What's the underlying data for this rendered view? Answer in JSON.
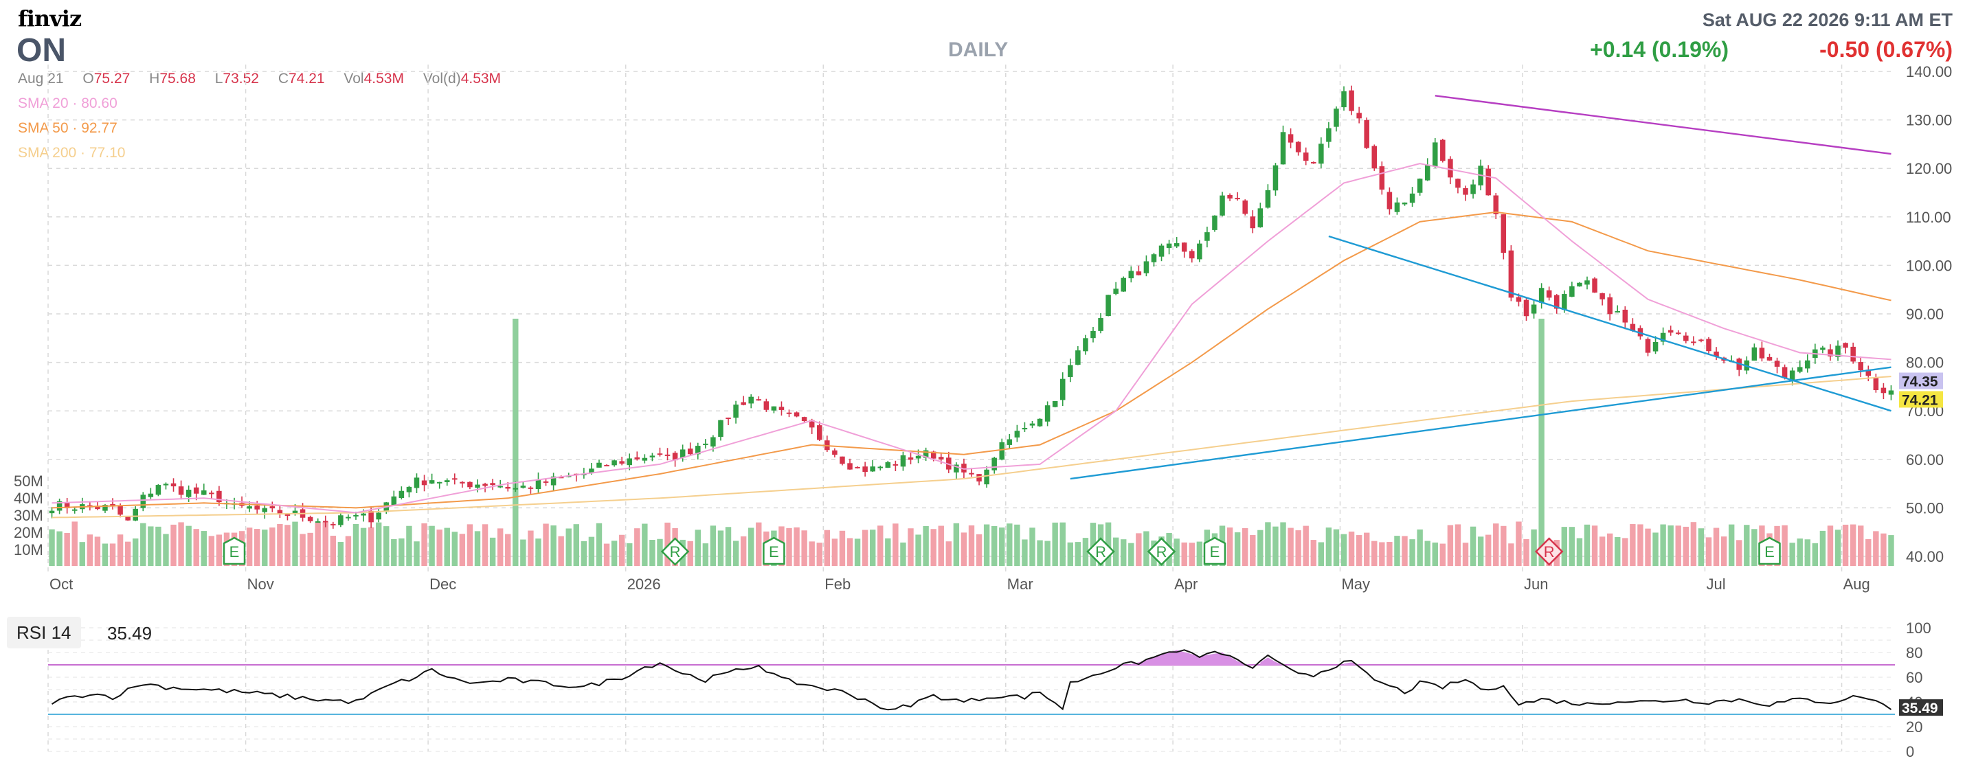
{
  "header": {
    "logo": "finviz",
    "ticker": "ON",
    "timeframe": "DAILY",
    "datetime": "Sat AUG 22 2026 9:11 AM ET",
    "change_pos": "+0.14 (0.19%)",
    "change_neg": "-0.50 (0.67%)"
  },
  "ohlc": {
    "date": "Aug 21",
    "o_label": "O",
    "o": "75.27",
    "h_label": "H",
    "h": "75.68",
    "l_label": "L",
    "l": "73.52",
    "c_label": "C",
    "c": "74.21",
    "vol_label": "Vol",
    "vol": "4.53M",
    "vold_label": "Vol(d)",
    "vold": "4.53M"
  },
  "sma": {
    "sma20": "SMA 20 · 80.60",
    "sma50": "SMA 50 · 92.77",
    "sma200": "SMA 200 · 77.10"
  },
  "rsi": {
    "label": "RSI 14",
    "value": "35.49"
  },
  "colors": {
    "up": "#2f9e44",
    "down": "#d6334b",
    "up_vol": "#8fcf9c",
    "down_vol": "#f2a1a9",
    "sma20": "#f0a0d8",
    "sma50": "#f39a4a",
    "sma200": "#f5cf8e",
    "trend_blue": "#1f9bd4",
    "trend_purple": "#b63ec2",
    "rsi_fill": "#d890e4"
  },
  "chart_data": {
    "type": "candlestick",
    "y_ticks": [
      "140.00",
      "130.00",
      "120.00",
      "110.00",
      "100.00",
      "90.00",
      "80.00",
      "70.00",
      "60.00",
      "50.00",
      "40.00"
    ],
    "y_range": [
      40,
      140
    ],
    "x_labels": [
      "Oct",
      "Nov",
      "Dec",
      "2026",
      "Feb",
      "Mar",
      "Apr",
      "May",
      "Jun",
      "Jul",
      "Aug"
    ],
    "price_tags": [
      {
        "label": "74.35",
        "value": 74.35,
        "color": "#c9c3f0"
      },
      {
        "label": "74.21",
        "value": 74.21,
        "color": "#f5e642"
      }
    ],
    "close_anchors": [
      [
        0,
        50.5
      ],
      [
        8,
        50
      ],
      [
        10,
        47
      ],
      [
        12,
        52
      ],
      [
        14,
        55
      ],
      [
        16,
        54
      ],
      [
        19,
        53
      ],
      [
        22,
        52
      ],
      [
        24,
        50
      ],
      [
        26,
        50
      ],
      [
        28,
        49
      ],
      [
        31,
        49
      ],
      [
        34,
        48
      ],
      [
        37,
        47
      ],
      [
        39,
        48
      ],
      [
        42,
        48
      ],
      [
        44,
        51
      ],
      [
        47,
        55
      ],
      [
        50,
        56
      ],
      [
        53,
        55
      ],
      [
        56,
        55
      ],
      [
        58,
        55
      ],
      [
        61,
        54
      ],
      [
        64,
        55
      ],
      [
        67,
        56
      ],
      [
        70,
        57
      ],
      [
        73,
        59
      ],
      [
        76,
        60
      ],
      [
        79,
        61
      ],
      [
        81,
        60
      ],
      [
        84,
        62
      ],
      [
        86,
        64
      ],
      [
        88,
        67
      ],
      [
        90,
        71
      ],
      [
        92,
        73
      ],
      [
        95,
        70
      ],
      [
        98,
        68
      ],
      [
        100,
        66
      ],
      [
        102,
        63
      ],
      [
        104,
        60
      ],
      [
        106,
        58
      ],
      [
        108,
        58
      ],
      [
        110,
        59
      ],
      [
        112,
        60
      ],
      [
        114,
        61
      ],
      [
        116,
        61
      ],
      [
        118,
        59
      ],
      [
        121,
        56
      ],
      [
        123,
        57
      ],
      [
        124,
        61
      ],
      [
        126,
        64
      ],
      [
        128,
        67
      ],
      [
        130,
        69
      ],
      [
        132,
        73
      ],
      [
        134,
        79
      ],
      [
        136,
        85
      ],
      [
        138,
        90
      ],
      [
        140,
        96
      ],
      [
        142,
        98
      ],
      [
        144,
        100
      ],
      [
        146,
        103
      ],
      [
        148,
        104
      ],
      [
        150,
        102
      ],
      [
        152,
        106
      ],
      [
        154,
        115
      ],
      [
        156,
        113
      ],
      [
        158,
        108
      ],
      [
        160,
        115
      ],
      [
        162,
        127
      ],
      [
        164,
        124
      ],
      [
        166,
        120
      ],
      [
        168,
        128
      ],
      [
        170,
        135
      ],
      [
        172,
        130
      ],
      [
        174,
        120
      ],
      [
        176,
        111
      ],
      [
        178,
        113
      ],
      [
        180,
        118
      ],
      [
        182,
        125
      ],
      [
        184,
        118
      ],
      [
        186,
        114
      ],
      [
        188,
        120
      ],
      [
        190,
        111
      ],
      [
        192,
        94
      ],
      [
        194,
        90
      ],
      [
        196,
        95
      ],
      [
        198,
        92
      ],
      [
        200,
        95
      ],
      [
        202,
        96
      ],
      [
        204,
        92
      ],
      [
        206,
        90
      ],
      [
        208,
        86
      ],
      [
        210,
        83
      ],
      [
        212,
        87
      ],
      [
        214,
        87
      ],
      [
        216,
        84
      ],
      [
        218,
        83
      ],
      [
        220,
        81
      ],
      [
        222,
        79
      ],
      [
        224,
        82
      ],
      [
        226,
        80
      ],
      [
        228,
        77
      ],
      [
        230,
        80
      ],
      [
        232,
        82
      ],
      [
        234,
        82
      ],
      [
        236,
        83
      ],
      [
        238,
        79
      ],
      [
        240,
        75
      ],
      [
        242,
        74.21
      ]
    ],
    "sma20_anchors": [
      [
        0,
        51
      ],
      [
        20,
        52
      ],
      [
        40,
        49
      ],
      [
        60,
        55
      ],
      [
        80,
        59
      ],
      [
        100,
        68
      ],
      [
        120,
        58
      ],
      [
        130,
        59
      ],
      [
        140,
        70
      ],
      [
        150,
        92
      ],
      [
        160,
        105
      ],
      [
        170,
        117
      ],
      [
        180,
        121
      ],
      [
        190,
        118
      ],
      [
        200,
        105
      ],
      [
        210,
        93
      ],
      [
        220,
        87
      ],
      [
        230,
        82
      ],
      [
        242,
        80.6
      ]
    ],
    "sma50_anchors": [
      [
        0,
        50
      ],
      [
        20,
        51
      ],
      [
        40,
        50
      ],
      [
        60,
        52
      ],
      [
        80,
        57
      ],
      [
        100,
        63
      ],
      [
        120,
        61
      ],
      [
        130,
        63
      ],
      [
        140,
        70
      ],
      [
        150,
        80
      ],
      [
        160,
        91
      ],
      [
        170,
        101
      ],
      [
        180,
        109
      ],
      [
        190,
        111
      ],
      [
        200,
        109
      ],
      [
        210,
        103
      ],
      [
        220,
        100
      ],
      [
        230,
        97
      ],
      [
        242,
        92.77
      ]
    ],
    "sma200_anchors": [
      [
        0,
        48
      ],
      [
        40,
        49
      ],
      [
        80,
        52
      ],
      [
        120,
        56
      ],
      [
        160,
        64
      ],
      [
        200,
        72
      ],
      [
        242,
        77.1
      ]
    ],
    "trendlines": [
      {
        "color": "#1f9bd4",
        "from": [
          134,
          56
        ],
        "to": [
          242,
          79
        ]
      },
      {
        "color": "#1f9bd4",
        "from": [
          168,
          106
        ],
        "to": [
          242,
          70
        ]
      },
      {
        "color": "#b63ec2",
        "from": [
          182,
          135
        ],
        "to": [
          242,
          123
        ]
      }
    ],
    "volume_axis": [
      "50M",
      "40M",
      "30M",
      "20M",
      "10M"
    ],
    "volume_spikes": [
      {
        "bar": 61,
        "value": 20,
        "dir": "up"
      },
      {
        "bar": 196,
        "value": 20,
        "dir": "down"
      }
    ],
    "event_markers": [
      {
        "type": "E",
        "bar": 24,
        "dir": "up"
      },
      {
        "type": "R",
        "bar": 82,
        "dir": "up"
      },
      {
        "type": "E",
        "bar": 95,
        "dir": "up"
      },
      {
        "type": "R",
        "bar": 138,
        "dir": "up"
      },
      {
        "type": "R",
        "bar": 146,
        "dir": "up"
      },
      {
        "type": "E",
        "bar": 153,
        "dir": "up"
      },
      {
        "type": "R",
        "bar": 197,
        "dir": "down"
      },
      {
        "type": "E",
        "bar": 226,
        "dir": "up"
      }
    ],
    "rsi_ticks": [
      "100",
      "80",
      "60",
      "40",
      "20",
      "0"
    ],
    "rsi_overbought": 70,
    "rsi_oversold": 30,
    "rsi_anchors": [
      [
        0,
        40
      ],
      [
        5,
        47
      ],
      [
        8,
        44
      ],
      [
        12,
        55
      ],
      [
        15,
        52
      ],
      [
        20,
        50
      ],
      [
        25,
        48
      ],
      [
        30,
        45
      ],
      [
        35,
        42
      ],
      [
        40,
        40
      ],
      [
        45,
        55
      ],
      [
        48,
        60
      ],
      [
        50,
        66
      ],
      [
        53,
        58
      ],
      [
        56,
        55
      ],
      [
        60,
        58
      ],
      [
        65,
        55
      ],
      [
        70,
        52
      ],
      [
        75,
        60
      ],
      [
        78,
        68
      ],
      [
        80,
        72
      ],
      [
        83,
        63
      ],
      [
        86,
        58
      ],
      [
        90,
        65
      ],
      [
        93,
        70
      ],
      [
        96,
        58
      ],
      [
        100,
        53
      ],
      [
        104,
        48
      ],
      [
        108,
        40
      ],
      [
        110,
        32
      ],
      [
        113,
        38
      ],
      [
        116,
        45
      ],
      [
        120,
        40
      ],
      [
        124,
        45
      ],
      [
        128,
        44
      ],
      [
        130,
        48
      ],
      [
        133,
        35
      ],
      [
        134,
        55
      ],
      [
        137,
        62
      ],
      [
        140,
        68
      ],
      [
        143,
        72
      ],
      [
        146,
        78
      ],
      [
        148,
        82
      ],
      [
        151,
        77
      ],
      [
        154,
        80
      ],
      [
        156,
        73
      ],
      [
        158,
        68
      ],
      [
        160,
        76
      ],
      [
        163,
        65
      ],
      [
        166,
        62
      ],
      [
        169,
        70
      ],
      [
        171,
        72
      ],
      [
        173,
        62
      ],
      [
        175,
        55
      ],
      [
        178,
        48
      ],
      [
        180,
        55
      ],
      [
        183,
        52
      ],
      [
        186,
        58
      ],
      [
        189,
        48
      ],
      [
        191,
        55
      ],
      [
        193,
        38
      ],
      [
        196,
        42
      ],
      [
        199,
        40
      ],
      [
        202,
        38
      ],
      [
        206,
        41
      ],
      [
        210,
        40
      ],
      [
        214,
        42
      ],
      [
        218,
        40
      ],
      [
        222,
        42
      ],
      [
        226,
        38
      ],
      [
        230,
        42
      ],
      [
        234,
        40
      ],
      [
        238,
        45
      ],
      [
        242,
        35.49
      ]
    ]
  }
}
